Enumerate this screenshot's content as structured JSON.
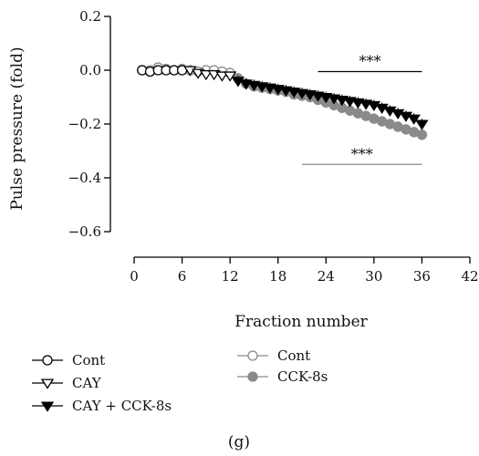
{
  "chart_data": {
    "type": "scatter",
    "panel_label": "(g)",
    "xlabel": "Fraction number",
    "ylabel": "Pulse pressure (fold)",
    "xlim": [
      0,
      42
    ],
    "ylim": [
      -0.6,
      0.2
    ],
    "xticks": [
      "0",
      "6",
      "12",
      "18",
      "24",
      "30",
      "36",
      "42"
    ],
    "yticks": [
      "0.2",
      "0.0",
      "−0.2",
      "−0.4",
      "−0.6"
    ],
    "series": [
      {
        "name": "Cont",
        "group": "black",
        "marker": "open-circle",
        "color": "#000000",
        "x": [
          1,
          2,
          3,
          4,
          5,
          6
        ],
        "y": [
          0.0,
          -0.005,
          0.0,
          0.0,
          0.0,
          0.0
        ]
      },
      {
        "name": "CAY",
        "group": "black",
        "marker": "open-triangle-down",
        "color": "#000000",
        "x": [
          7,
          8,
          9,
          10,
          11,
          12
        ],
        "y": [
          0.0,
          -0.01,
          -0.015,
          -0.015,
          -0.02,
          -0.02
        ]
      },
      {
        "name": "CAY + CCK-8s",
        "group": "black",
        "marker": "filled-triangle-down",
        "color": "#000000",
        "x": [
          13,
          14,
          15,
          16,
          17,
          18,
          19,
          20,
          21,
          22,
          23,
          24,
          25,
          26,
          27,
          28,
          29,
          30,
          31,
          32,
          33,
          34,
          35,
          36
        ],
        "y": [
          -0.04,
          -0.05,
          -0.055,
          -0.06,
          -0.065,
          -0.07,
          -0.075,
          -0.08,
          -0.085,
          -0.09,
          -0.095,
          -0.1,
          -0.105,
          -0.11,
          -0.115,
          -0.12,
          -0.125,
          -0.13,
          -0.14,
          -0.15,
          -0.16,
          -0.17,
          -0.18,
          -0.2
        ]
      },
      {
        "name": "Cont",
        "group": "gray",
        "marker": "open-circle",
        "color": "#8a8a8a",
        "x": [
          1,
          2,
          3,
          4,
          5,
          6,
          7,
          8,
          9,
          10,
          11,
          12
        ],
        "y": [
          0.0,
          0.0,
          0.01,
          0.005,
          0.0,
          0.005,
          0.0,
          -0.005,
          0.0,
          0.0,
          -0.005,
          -0.01
        ]
      },
      {
        "name": "CCK-8s",
        "group": "gray",
        "marker": "filled-circle",
        "color": "#8a8a8a",
        "x": [
          13,
          14,
          15,
          16,
          17,
          18,
          19,
          20,
          21,
          22,
          23,
          24,
          25,
          26,
          27,
          28,
          29,
          30,
          31,
          32,
          33,
          34,
          35,
          36
        ],
        "y": [
          -0.03,
          -0.05,
          -0.06,
          -0.065,
          -0.07,
          -0.075,
          -0.08,
          -0.09,
          -0.095,
          -0.1,
          -0.11,
          -0.12,
          -0.13,
          -0.14,
          -0.15,
          -0.16,
          -0.17,
          -0.18,
          -0.19,
          -0.2,
          -0.21,
          -0.22,
          -0.23,
          -0.24
        ]
      }
    ],
    "error_bar": 0.02,
    "annotations": [
      {
        "text": "***",
        "color": "#000000",
        "x_from": 23,
        "x_to": 36,
        "y": -0.005
      },
      {
        "text": "***",
        "color": "#8a8a8a",
        "x_from": 21,
        "x_to": 36,
        "y": -0.35
      }
    ],
    "legend": {
      "placement": "bottom",
      "columns": [
        [
          "Cont",
          "CAY",
          "CAY + CCK-8s"
        ],
        [
          "Cont",
          "CCK-8s"
        ]
      ]
    }
  }
}
